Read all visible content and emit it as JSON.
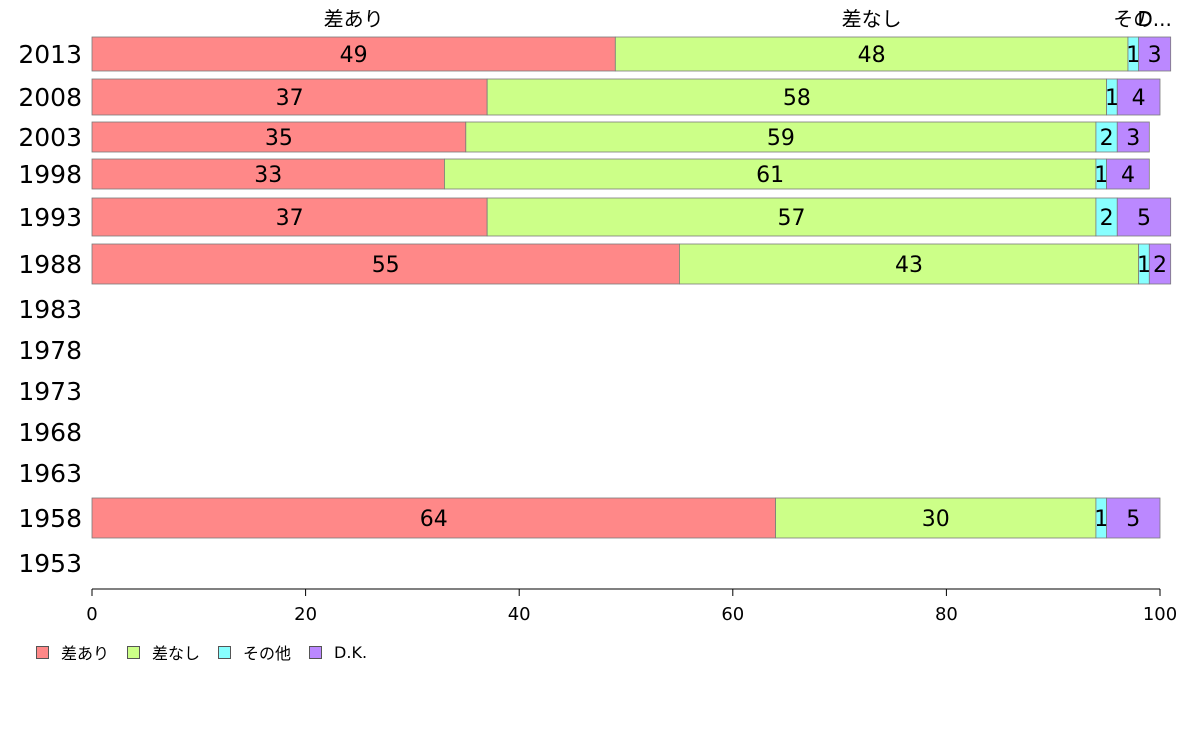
{
  "chart_data": {
    "type": "bar",
    "orientation": "horizontal",
    "stacked": true,
    "categories": [
      "2013",
      "2008",
      "2003",
      "1998",
      "1993",
      "1988",
      "1983",
      "1978",
      "1973",
      "1968",
      "1963",
      "1958",
      "1953"
    ],
    "series": [
      {
        "name": "差あり",
        "color": "#ff8888",
        "values": [
          49,
          37,
          35,
          33,
          37,
          55,
          null,
          null,
          null,
          null,
          null,
          64,
          null
        ]
      },
      {
        "name": "差なし",
        "color": "#ccff88",
        "values": [
          48,
          58,
          59,
          61,
          57,
          43,
          null,
          null,
          null,
          null,
          null,
          30,
          null
        ]
      },
      {
        "name": "その他",
        "color": "#88ffff",
        "values": [
          1,
          1,
          2,
          1,
          2,
          1,
          null,
          null,
          null,
          null,
          null,
          1,
          null
        ]
      },
      {
        "name": "D.K.",
        "color": "#bb88ff",
        "values": [
          3,
          4,
          3,
          4,
          5,
          2,
          null,
          null,
          null,
          null,
          null,
          5,
          null
        ]
      }
    ],
    "top_labels": [
      "差あり",
      "差なし",
      "その",
      "D..."
    ],
    "xlim": [
      0,
      100
    ],
    "xticks": [
      "0",
      "20",
      "40",
      "60",
      "80",
      "100"
    ],
    "legend_position": "bottom-left",
    "grid": false
  }
}
